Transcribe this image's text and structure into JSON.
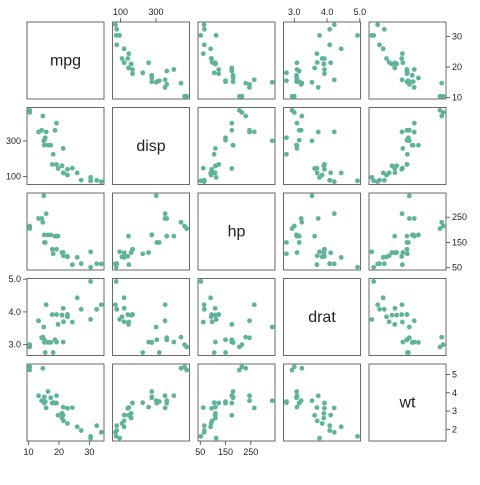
{
  "chart_data": {
    "type": "scatter",
    "color": "#5fb39b",
    "series": [
      {
        "name": "mpg",
        "lim": [
          9.5,
          34.8
        ],
        "ticks": [
          10,
          20,
          30
        ],
        "values": [
          21.0,
          21.0,
          22.8,
          21.4,
          18.7,
          18.1,
          14.3,
          24.4,
          22.8,
          19.2,
          17.8,
          16.4,
          17.3,
          15.2,
          10.4,
          10.4,
          14.7,
          32.4,
          30.4,
          33.9,
          21.5,
          15.5,
          15.2,
          13.3,
          19.2,
          27.3,
          26.0,
          30.4,
          15.8,
          19.7,
          15.0,
          21.4
        ]
      },
      {
        "name": "disp",
        "lim": [
          55,
          488
        ],
        "ticks": [
          100,
          300
        ],
        "values": [
          160,
          160,
          108,
          258,
          360,
          225,
          360,
          146.7,
          140.8,
          167.6,
          167.6,
          275.8,
          275.8,
          275.8,
          472,
          460,
          440,
          78.7,
          75.7,
          71.1,
          120.1,
          318,
          304,
          350,
          400,
          79,
          120.3,
          95.1,
          351,
          145,
          301,
          121
        ]
      },
      {
        "name": "hp",
        "lim": [
          41,
          346
        ],
        "ticks": [
          50,
          150,
          250
        ],
        "values": [
          110,
          110,
          93,
          110,
          175,
          105,
          245,
          62,
          95,
          123,
          123,
          180,
          180,
          180,
          205,
          215,
          230,
          66,
          52,
          65,
          97,
          150,
          150,
          245,
          175,
          66,
          91,
          113,
          264,
          175,
          335,
          109
        ]
      },
      {
        "name": "drat",
        "lim": [
          2.67,
          5.02
        ],
        "ticks": [
          {
            "value": 3,
            "label": "3.0"
          },
          {
            "value": 4,
            "label": "4.0"
          },
          {
            "value": 5,
            "label": "5.0"
          }
        ],
        "values": [
          3.9,
          3.9,
          3.85,
          3.08,
          3.15,
          2.76,
          3.21,
          3.69,
          3.92,
          3.92,
          3.92,
          3.07,
          3.07,
          3.07,
          2.93,
          3.0,
          3.23,
          4.08,
          4.93,
          4.22,
          3.7,
          2.76,
          3.15,
          3.73,
          3.08,
          4.08,
          4.43,
          3.77,
          4.22,
          3.62,
          3.54,
          4.11
        ]
      },
      {
        "name": "wt",
        "lim": [
          1.36,
          5.58
        ],
        "ticks": [
          2,
          3,
          4,
          5
        ],
        "values": [
          2.62,
          2.875,
          2.32,
          3.215,
          3.44,
          3.46,
          3.57,
          3.19,
          3.15,
          3.44,
          3.44,
          4.07,
          3.73,
          3.78,
          5.25,
          5.424,
          5.345,
          2.2,
          1.615,
          1.835,
          2.465,
          3.52,
          3.435,
          3.84,
          3.845,
          1.935,
          2.14,
          1.513,
          3.17,
          2.77,
          3.57,
          2.78
        ]
      }
    ]
  }
}
